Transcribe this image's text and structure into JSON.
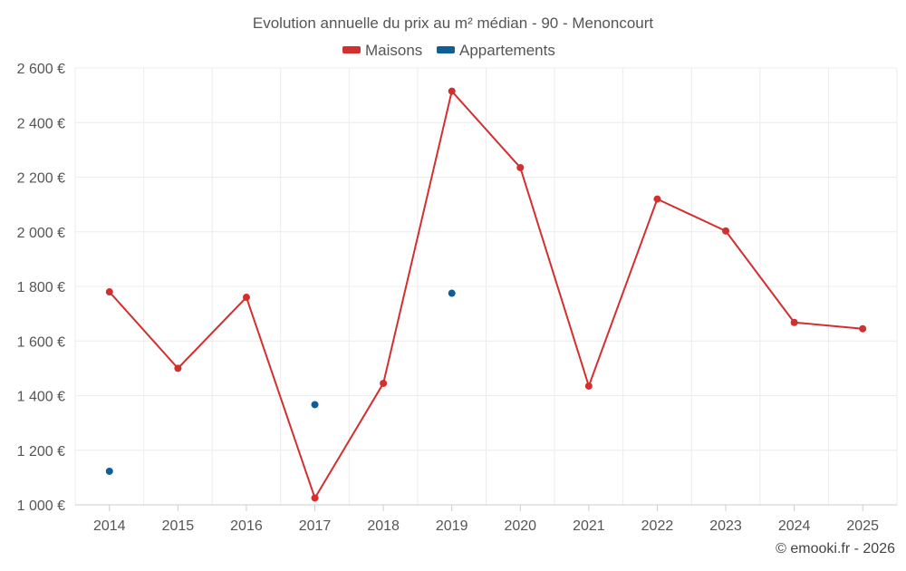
{
  "chart_data": {
    "type": "line",
    "title": "Evolution annuelle du prix au m² médian - 90 - Menoncourt",
    "categories": [
      "2014",
      "2015",
      "2016",
      "2017",
      "2018",
      "2019",
      "2020",
      "2021",
      "2022",
      "2023",
      "2024",
      "2025"
    ],
    "y_ticks": [
      "1 000 €",
      "1 200 €",
      "1 400 €",
      "1 600 €",
      "1 800 €",
      "2 000 €",
      "2 200 €",
      "2 400 €",
      "2 600 €"
    ],
    "ylim": [
      1000,
      2600
    ],
    "grid": true,
    "legend_position": "top-center",
    "series": [
      {
        "name": "Maisons",
        "color": "#d32f2f",
        "style": "line-with-markers",
        "values": [
          1780,
          1500,
          1760,
          1025,
          1445,
          2515,
          2235,
          1435,
          2120,
          2003,
          1668,
          1645
        ]
      },
      {
        "name": "Appartements",
        "color": "#0f5f94",
        "style": "markers",
        "values": [
          1123,
          null,
          null,
          1367,
          null,
          1775,
          null,
          null,
          null,
          null,
          null,
          null
        ]
      }
    ],
    "credit": "© emooki.fr - 2026"
  }
}
